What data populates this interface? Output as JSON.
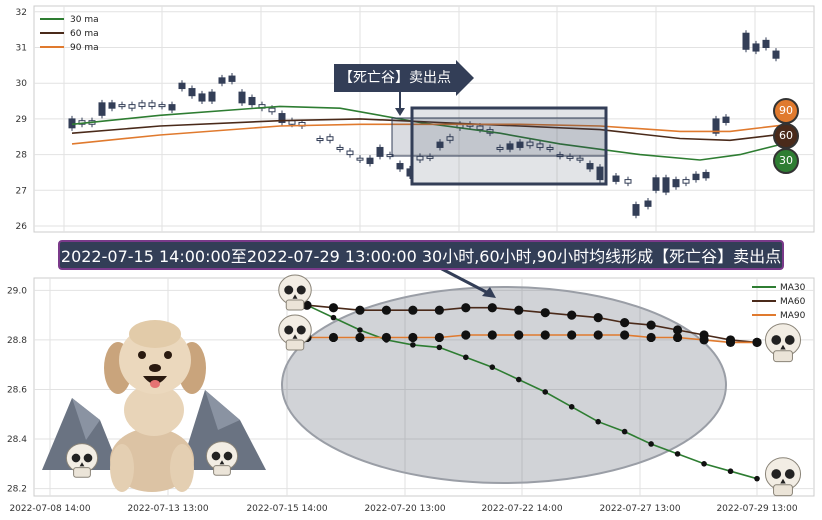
{
  "top_chart": {
    "legend": [
      {
        "label": "30 ma",
        "color": "#2e7d32"
      },
      {
        "label": "60 ma",
        "color": "#4a2a1a"
      },
      {
        "label": "90 ma",
        "color": "#e07a2e"
      }
    ],
    "y_ticks": [
      "26",
      "27",
      "28",
      "29",
      "30",
      "31",
      "32"
    ],
    "callout_label": "【死亡谷】卖出点",
    "badges": [
      "90",
      "60",
      "30"
    ]
  },
  "banner_text": "2022-07-15 14:00:00至2022-07-29 13:00:00 30小时,60小时,90小时均线形成【死亡谷】卖出点",
  "chart_data": {
    "type": "line",
    "title": "",
    "xlabel": "",
    "ylabel": "",
    "x_tick_labels": [
      "2022-07-08 14:00",
      "2022-07-13 13:00",
      "2022-07-15 14:00",
      "2022-07-20 13:00",
      "2022-07-22 14:00",
      "2022-07-27 13:00",
      "2022-07-29 13:00"
    ],
    "y_ticks": [
      "28.2",
      "28.4",
      "28.6",
      "28.8",
      "29.0"
    ],
    "ylim": [
      28.17,
      29.05
    ],
    "series": [
      {
        "name": "MA30",
        "color": "#2e7d32",
        "values": [
          28.94,
          28.89,
          28.84,
          28.8,
          28.78,
          28.77,
          28.73,
          28.69,
          28.64,
          28.59,
          28.53,
          28.47,
          28.43,
          28.38,
          28.34,
          28.3,
          28.27,
          28.24
        ]
      },
      {
        "name": "MA60",
        "color": "#4a2a1a",
        "values": [
          28.94,
          28.93,
          28.92,
          28.92,
          28.92,
          28.92,
          28.93,
          28.93,
          28.92,
          28.91,
          28.9,
          28.89,
          28.87,
          28.86,
          28.84,
          28.82,
          28.8,
          28.79
        ]
      },
      {
        "name": "MA90",
        "color": "#e07a2e",
        "values": [
          28.81,
          28.81,
          28.81,
          28.81,
          28.81,
          28.81,
          28.82,
          28.82,
          28.82,
          28.82,
          28.82,
          28.82,
          28.82,
          28.81,
          28.81,
          28.8,
          28.79,
          28.79
        ]
      }
    ]
  }
}
